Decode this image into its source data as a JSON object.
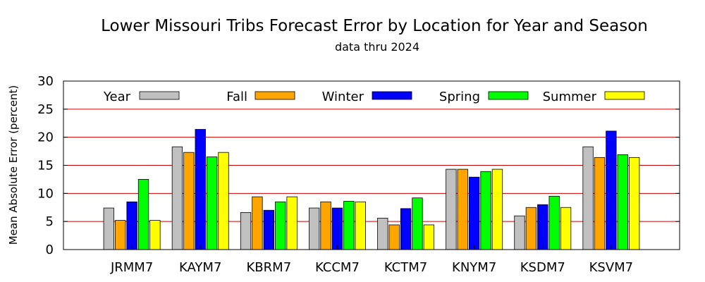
{
  "chart_data": {
    "type": "bar",
    "title": "Lower Missouri Tribs Forecast Error by Location for Year and Season",
    "subtitle": "data thru 2024",
    "ylabel": "Mean Absolute Error (percent)",
    "xlabel": "",
    "ylim": [
      0,
      30
    ],
    "yticks": [
      "0",
      "5",
      "10",
      "15",
      "20",
      "25",
      "30"
    ],
    "grid": "horizontal",
    "legend_position": "top",
    "categories": [
      "JRMM7",
      "KAYM7",
      "KBRM7",
      "KCCM7",
      "KCTM7",
      "KNYM7",
      "KSDM7",
      "KSVM7"
    ],
    "series": [
      {
        "name": "Year",
        "color": "#c0c0c0",
        "values": [
          7.4,
          18.3,
          6.6,
          7.4,
          5.6,
          14.3,
          6.0,
          18.3
        ]
      },
      {
        "name": "Fall",
        "color": "#ffa500",
        "values": [
          5.2,
          17.3,
          9.4,
          8.5,
          4.4,
          14.3,
          7.5,
          16.4
        ]
      },
      {
        "name": "Winter",
        "color": "#0000ff",
        "values": [
          8.5,
          21.4,
          7.0,
          7.4,
          7.3,
          12.9,
          8.0,
          21.1
        ]
      },
      {
        "name": "Spring",
        "color": "#00ff00",
        "values": [
          12.5,
          16.5,
          8.5,
          8.6,
          9.2,
          13.9,
          9.5,
          16.9
        ]
      },
      {
        "name": "Summer",
        "color": "#ffff00",
        "values": [
          5.2,
          17.3,
          9.4,
          8.5,
          4.4,
          14.3,
          7.5,
          16.4
        ]
      }
    ]
  }
}
